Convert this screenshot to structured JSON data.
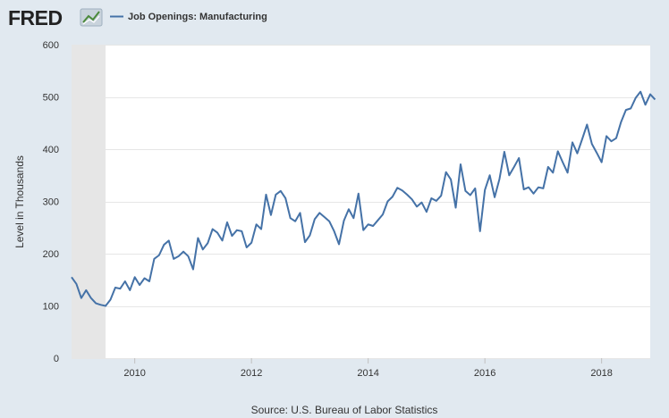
{
  "header": {
    "logo_text": "FRED",
    "legend_label": "Job Openings: Manufacturing"
  },
  "colors": {
    "background": "#e1e9f0",
    "plot_bg": "#ffffff",
    "recession": "#e6e6e6",
    "line": "#4572a7",
    "grid": "#e6e6e6",
    "text": "#333333"
  },
  "chart_data": {
    "type": "line",
    "title": "Job Openings: Manufacturing",
    "xlabel": "",
    "ylabel": "Level in Thousands",
    "source": "Source: U.S. Bureau of Labor Statistics",
    "ylim": [
      0,
      600
    ],
    "xlim": [
      2008.917,
      2018.833
    ],
    "y_ticks": [
      0,
      100,
      200,
      300,
      400,
      500,
      600
    ],
    "x_ticks": [
      2010,
      2012,
      2014,
      2016,
      2018
    ],
    "x_tick_labels": [
      "2010",
      "2012",
      "2014",
      "2016",
      "2018"
    ],
    "grid": true,
    "recession_bands": [
      [
        2008.917,
        2009.5
      ]
    ],
    "series": [
      {
        "name": "Job Openings: Manufacturing",
        "start": 2008.917,
        "step": 0.08333,
        "values": [
          155,
          142,
          115,
          130,
          115,
          105,
          102,
          100,
          112,
          135,
          133,
          147,
          130,
          155,
          140,
          153,
          147,
          190,
          197,
          217,
          225,
          190,
          195,
          204,
          195,
          170,
          230,
          208,
          220,
          247,
          240,
          225,
          260,
          234,
          245,
          243,
          212,
          221,
          256,
          247,
          313,
          274,
          313,
          320,
          306,
          268,
          262,
          278,
          222,
          235,
          266,
          278,
          270,
          262,
          243,
          218,
          263,
          285,
          268,
          315,
          245,
          256,
          253,
          264,
          275,
          300,
          309,
          326,
          321,
          313,
          304,
          290,
          298,
          280,
          306,
          301,
          311,
          356,
          342,
          288,
          371,
          320,
          312,
          325,
          243,
          322,
          350,
          308,
          343,
          395,
          350,
          366,
          383,
          323,
          327,
          315,
          327,
          325,
          366,
          355,
          396,
          375,
          355,
          413,
          392,
          419,
          447,
          410,
          393,
          375,
          425,
          415,
          421,
          452,
          475,
          478,
          498,
          510,
          485,
          505,
          495
        ]
      }
    ]
  }
}
